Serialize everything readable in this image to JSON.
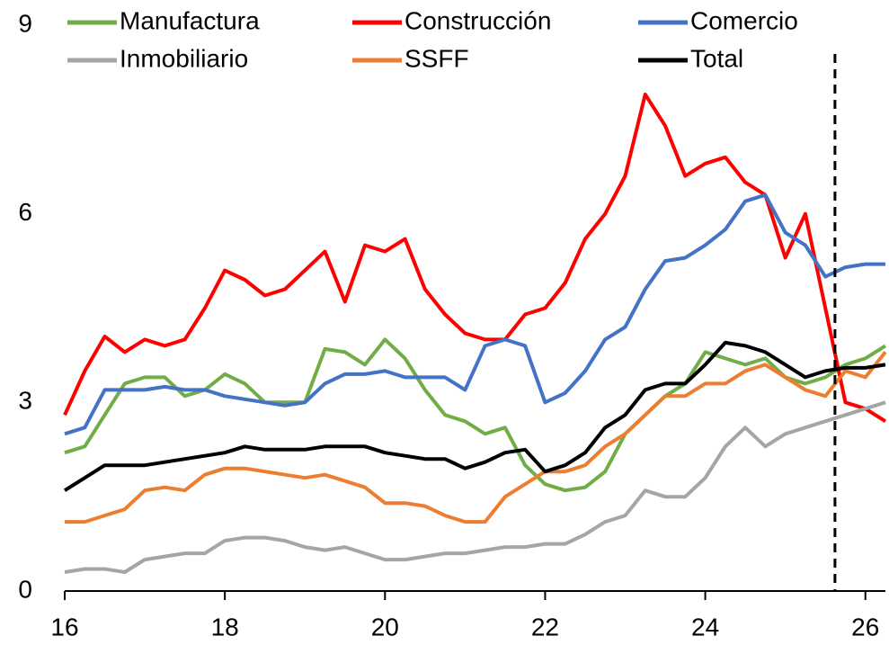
{
  "chart_data": {
    "type": "line",
    "x": [
      16,
      16.25,
      16.5,
      16.75,
      17,
      17.25,
      17.5,
      17.75,
      18,
      18.25,
      18.5,
      18.75,
      19,
      19.25,
      19.5,
      19.75,
      20,
      20.25,
      20.5,
      20.75,
      21,
      21.25,
      21.5,
      21.75,
      22,
      22.25,
      22.5,
      22.75,
      23,
      23.25,
      23.5,
      23.75,
      24,
      24.25,
      24.5,
      24.75,
      25,
      25.25,
      25.5,
      25.75,
      26,
      26.25
    ],
    "series": [
      {
        "name": "Manufactura",
        "color": "#70ad47",
        "values": [
          2.2,
          2.3,
          2.8,
          3.3,
          3.4,
          3.4,
          3.1,
          3.2,
          3.45,
          3.3,
          3.0,
          3.0,
          3.0,
          3.85,
          3.8,
          3.6,
          4.0,
          3.7,
          3.2,
          2.8,
          2.7,
          2.5,
          2.6,
          2.0,
          1.7,
          1.6,
          1.65,
          1.9,
          2.5,
          2.8,
          3.1,
          3.3,
          3.8,
          3.7,
          3.6,
          3.7,
          3.4,
          3.3,
          3.4,
          3.6,
          3.7,
          3.9
        ]
      },
      {
        "name": "Construcción",
        "color": "#ff0000",
        "values": [
          2.8,
          3.5,
          4.05,
          3.8,
          4.0,
          3.9,
          4.0,
          4.5,
          5.1,
          4.95,
          4.7,
          4.8,
          5.1,
          5.4,
          4.6,
          5.5,
          5.4,
          5.6,
          4.8,
          4.4,
          4.1,
          4.0,
          4.0,
          4.4,
          4.5,
          4.9,
          5.6,
          6.0,
          6.6,
          7.9,
          7.4,
          6.6,
          6.8,
          6.9,
          6.5,
          6.3,
          5.3,
          6.0,
          4.5,
          3.0,
          2.9,
          2.7
        ]
      },
      {
        "name": "Comercio",
        "color": "#4472c4",
        "values": [
          2.5,
          2.6,
          3.2,
          3.2,
          3.2,
          3.25,
          3.2,
          3.2,
          3.1,
          3.05,
          3.0,
          2.95,
          3.0,
          3.3,
          3.45,
          3.45,
          3.5,
          3.4,
          3.4,
          3.4,
          3.2,
          3.9,
          4.0,
          3.9,
          3.0,
          3.15,
          3.5,
          4.0,
          4.2,
          4.8,
          5.25,
          5.3,
          5.5,
          5.75,
          6.2,
          6.3,
          5.7,
          5.5,
          5.0,
          5.15,
          5.2,
          5.2
        ]
      },
      {
        "name": "Inmobiliario",
        "color": "#a5a5a5",
        "values": [
          0.3,
          0.35,
          0.35,
          0.3,
          0.5,
          0.55,
          0.6,
          0.6,
          0.8,
          0.85,
          0.85,
          0.8,
          0.7,
          0.65,
          0.7,
          0.6,
          0.5,
          0.5,
          0.55,
          0.6,
          0.6,
          0.65,
          0.7,
          0.7,
          0.75,
          0.75,
          0.9,
          1.1,
          1.2,
          1.6,
          1.5,
          1.5,
          1.8,
          2.3,
          2.6,
          2.3,
          2.5,
          2.6,
          2.7,
          2.8,
          2.9,
          3.0
        ]
      },
      {
        "name": "SSFF",
        "color": "#ed7d31",
        "values": [
          1.1,
          1.1,
          1.2,
          1.3,
          1.6,
          1.65,
          1.6,
          1.85,
          1.95,
          1.95,
          1.9,
          1.85,
          1.8,
          1.85,
          1.75,
          1.65,
          1.4,
          1.4,
          1.35,
          1.2,
          1.1,
          1.1,
          1.5,
          1.7,
          1.9,
          1.9,
          2.0,
          2.3,
          2.5,
          2.8,
          3.1,
          3.1,
          3.3,
          3.3,
          3.5,
          3.6,
          3.4,
          3.2,
          3.1,
          3.5,
          3.4,
          3.8
        ]
      },
      {
        "name": "Total",
        "color": "#000000",
        "values": [
          1.6,
          1.8,
          2.0,
          2.0,
          2.0,
          2.05,
          2.1,
          2.15,
          2.2,
          2.3,
          2.25,
          2.25,
          2.25,
          2.3,
          2.3,
          2.3,
          2.2,
          2.15,
          2.1,
          2.1,
          1.95,
          2.05,
          2.2,
          2.25,
          1.9,
          2.0,
          2.2,
          2.6,
          2.8,
          3.2,
          3.3,
          3.3,
          3.6,
          3.95,
          3.9,
          3.8,
          3.6,
          3.4,
          3.5,
          3.55,
          3.55,
          3.6
        ]
      }
    ],
    "xlim": [
      16,
      26.25
    ],
    "xticks": [
      16,
      18,
      20,
      22,
      24,
      26
    ],
    "ylim": [
      0,
      9
    ],
    "yticks": [
      0,
      3,
      6,
      9
    ],
    "vline": 25.62
  }
}
